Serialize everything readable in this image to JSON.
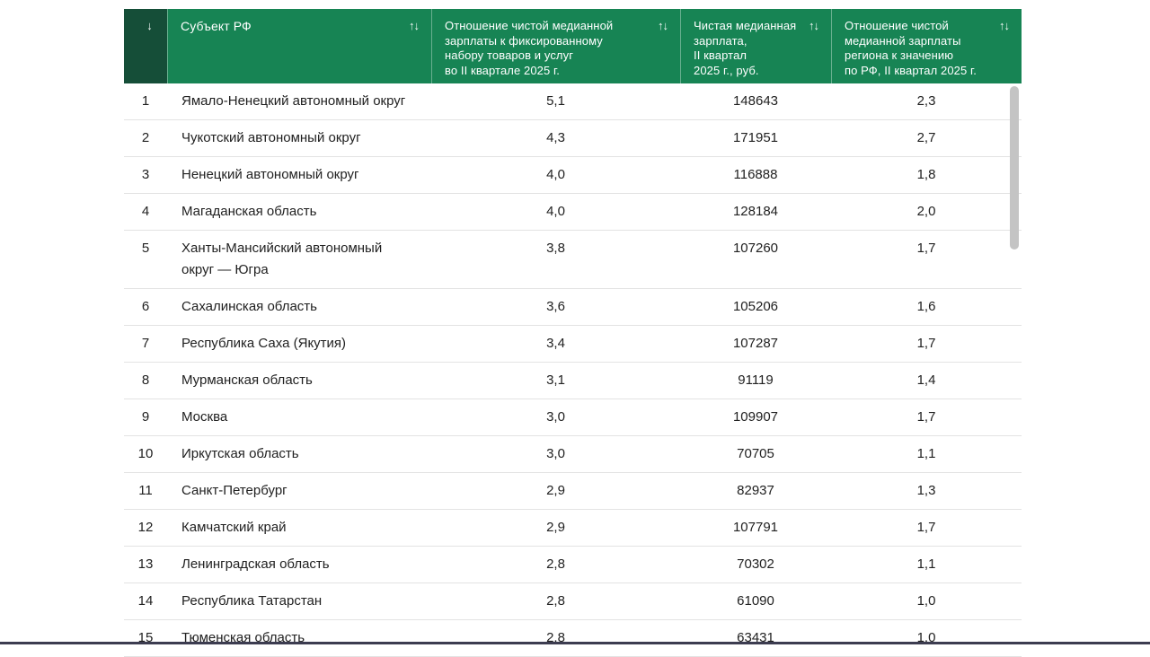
{
  "colors": {
    "header_green": "#178454",
    "header_rank_green": "#154e38",
    "header_text": "#ffffff",
    "body_text": "#212121",
    "row_border": "#e3e3e3",
    "scrollbar_thumb": "#c4c4c4",
    "bottom_bar": "#3c3c50"
  },
  "icons": {
    "rank_sort_icon": "↓",
    "column_sort_icon": "↑↓"
  },
  "table": {
    "columns": {
      "region": {
        "label": "Субъект РФ"
      },
      "ratio_goods": {
        "label": "Отношение чистой медианной\nзарплаты к фиксированному\nнабору товаров и услуг\nво II квартале 2025 г."
      },
      "salary": {
        "label": "Чистая медианная\nзарплата,\nII квартал\n2025 г., руб."
      },
      "ratio_rf": {
        "label": "Отношение чистой\nмедианной зарплаты\nрегиона к значению\nпо РФ, II квартал 2025 г."
      }
    },
    "rows": [
      {
        "rank": "1",
        "region": "Ямало-Ненецкий автономный округ",
        "ratio_goods": "5,1",
        "salary": "148643",
        "ratio_rf": "2,3"
      },
      {
        "rank": "2",
        "region": "Чукотский автономный округ",
        "ratio_goods": "4,3",
        "salary": "171951",
        "ratio_rf": "2,7"
      },
      {
        "rank": "3",
        "region": "Ненецкий автономный округ",
        "ratio_goods": "4,0",
        "salary": "116888",
        "ratio_rf": "1,8"
      },
      {
        "rank": "4",
        "region": "Магаданская область",
        "ratio_goods": "4,0",
        "salary": "128184",
        "ratio_rf": "2,0"
      },
      {
        "rank": "5",
        "region": "Ханты-Мансийский автономный округ — Югра",
        "ratio_goods": "3,8",
        "salary": "107260",
        "ratio_rf": "1,7"
      },
      {
        "rank": "6",
        "region": "Сахалинская область",
        "ratio_goods": "3,6",
        "salary": "105206",
        "ratio_rf": "1,6"
      },
      {
        "rank": "7",
        "region": "Республика Саха (Якутия)",
        "ratio_goods": "3,4",
        "salary": "107287",
        "ratio_rf": "1,7"
      },
      {
        "rank": "8",
        "region": "Мурманская область",
        "ratio_goods": "3,1",
        "salary": "91119",
        "ratio_rf": "1,4"
      },
      {
        "rank": "9",
        "region": "Москва",
        "ratio_goods": "3,0",
        "salary": "109907",
        "ratio_rf": "1,7"
      },
      {
        "rank": "10",
        "region": "Иркутская область",
        "ratio_goods": "3,0",
        "salary": "70705",
        "ratio_rf": "1,1"
      },
      {
        "rank": "11",
        "region": "Санкт-Петербург",
        "ratio_goods": "2,9",
        "salary": "82937",
        "ratio_rf": "1,3"
      },
      {
        "rank": "12",
        "region": "Камчатский край",
        "ratio_goods": "2,9",
        "salary": "107791",
        "ratio_rf": "1,7"
      },
      {
        "rank": "13",
        "region": "Ленинградская область",
        "ratio_goods": "2,8",
        "salary": "70302",
        "ratio_rf": "1,1"
      },
      {
        "rank": "14",
        "region": "Республика Татарстан",
        "ratio_goods": "2,8",
        "salary": "61090",
        "ratio_rf": "1,0"
      },
      {
        "rank": "15",
        "region": "Тюменская область",
        "ratio_goods": "2,8",
        "salary": "63431",
        "ratio_rf": "1,0"
      }
    ]
  }
}
